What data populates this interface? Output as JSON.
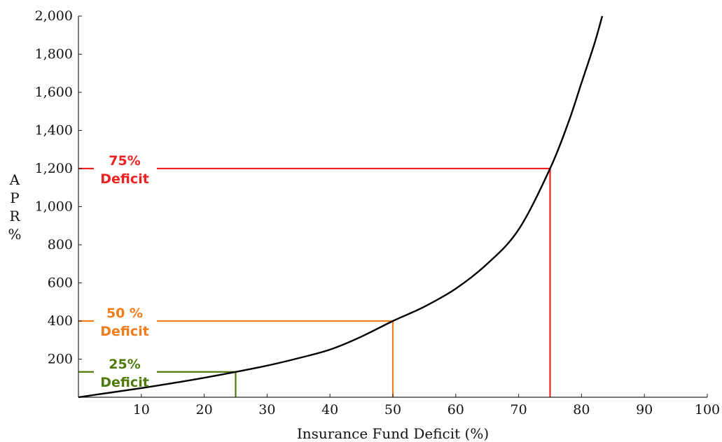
{
  "chart_data": {
    "type": "line",
    "xlabel": "Insurance Fund Deficit (%)",
    "ylabel_letters": [
      "A",
      "P",
      "R",
      "%"
    ],
    "xlim": [
      0,
      100
    ],
    "ylim": [
      0,
      2000
    ],
    "xticks": [
      10,
      20,
      30,
      40,
      50,
      60,
      70,
      80,
      90,
      100
    ],
    "xtick_labels": [
      "10",
      "20",
      "30",
      "40",
      "50",
      "60",
      "70",
      "80",
      "90",
      "100"
    ],
    "yticks": [
      200,
      400,
      600,
      800,
      1000,
      1200,
      1400,
      1600,
      1800,
      2000
    ],
    "ytick_labels": [
      "200",
      "400",
      "600",
      "800",
      "1,000",
      "1,200",
      "1,400",
      "1,600",
      "1,800",
      "2,000"
    ],
    "grid": false,
    "series": [
      {
        "color": "#000000",
        "x": [
          0,
          5,
          10,
          15,
          20,
          25,
          30,
          35,
          40,
          45,
          50,
          55,
          60,
          65,
          70,
          75,
          78,
          80,
          82,
          83.3
        ],
        "y": [
          0,
          24,
          48,
          74,
          102,
          133,
          166,
          205,
          250,
          318,
          400,
          475,
          570,
          700,
          880,
          1200,
          1450,
          1650,
          1850,
          2000
        ]
      }
    ],
    "markers": [
      {
        "x": 25,
        "y": 133,
        "color": "#4f7a0a",
        "line1": "25%",
        "line2": "Deficit"
      },
      {
        "x": 50,
        "y": 400,
        "color": "#f07c1a",
        "line1": "50 %",
        "line2": "Deficit"
      },
      {
        "x": 75,
        "y": 1200,
        "color": "#ee2222",
        "line1": "75%",
        "line2": "Deficit"
      }
    ]
  }
}
